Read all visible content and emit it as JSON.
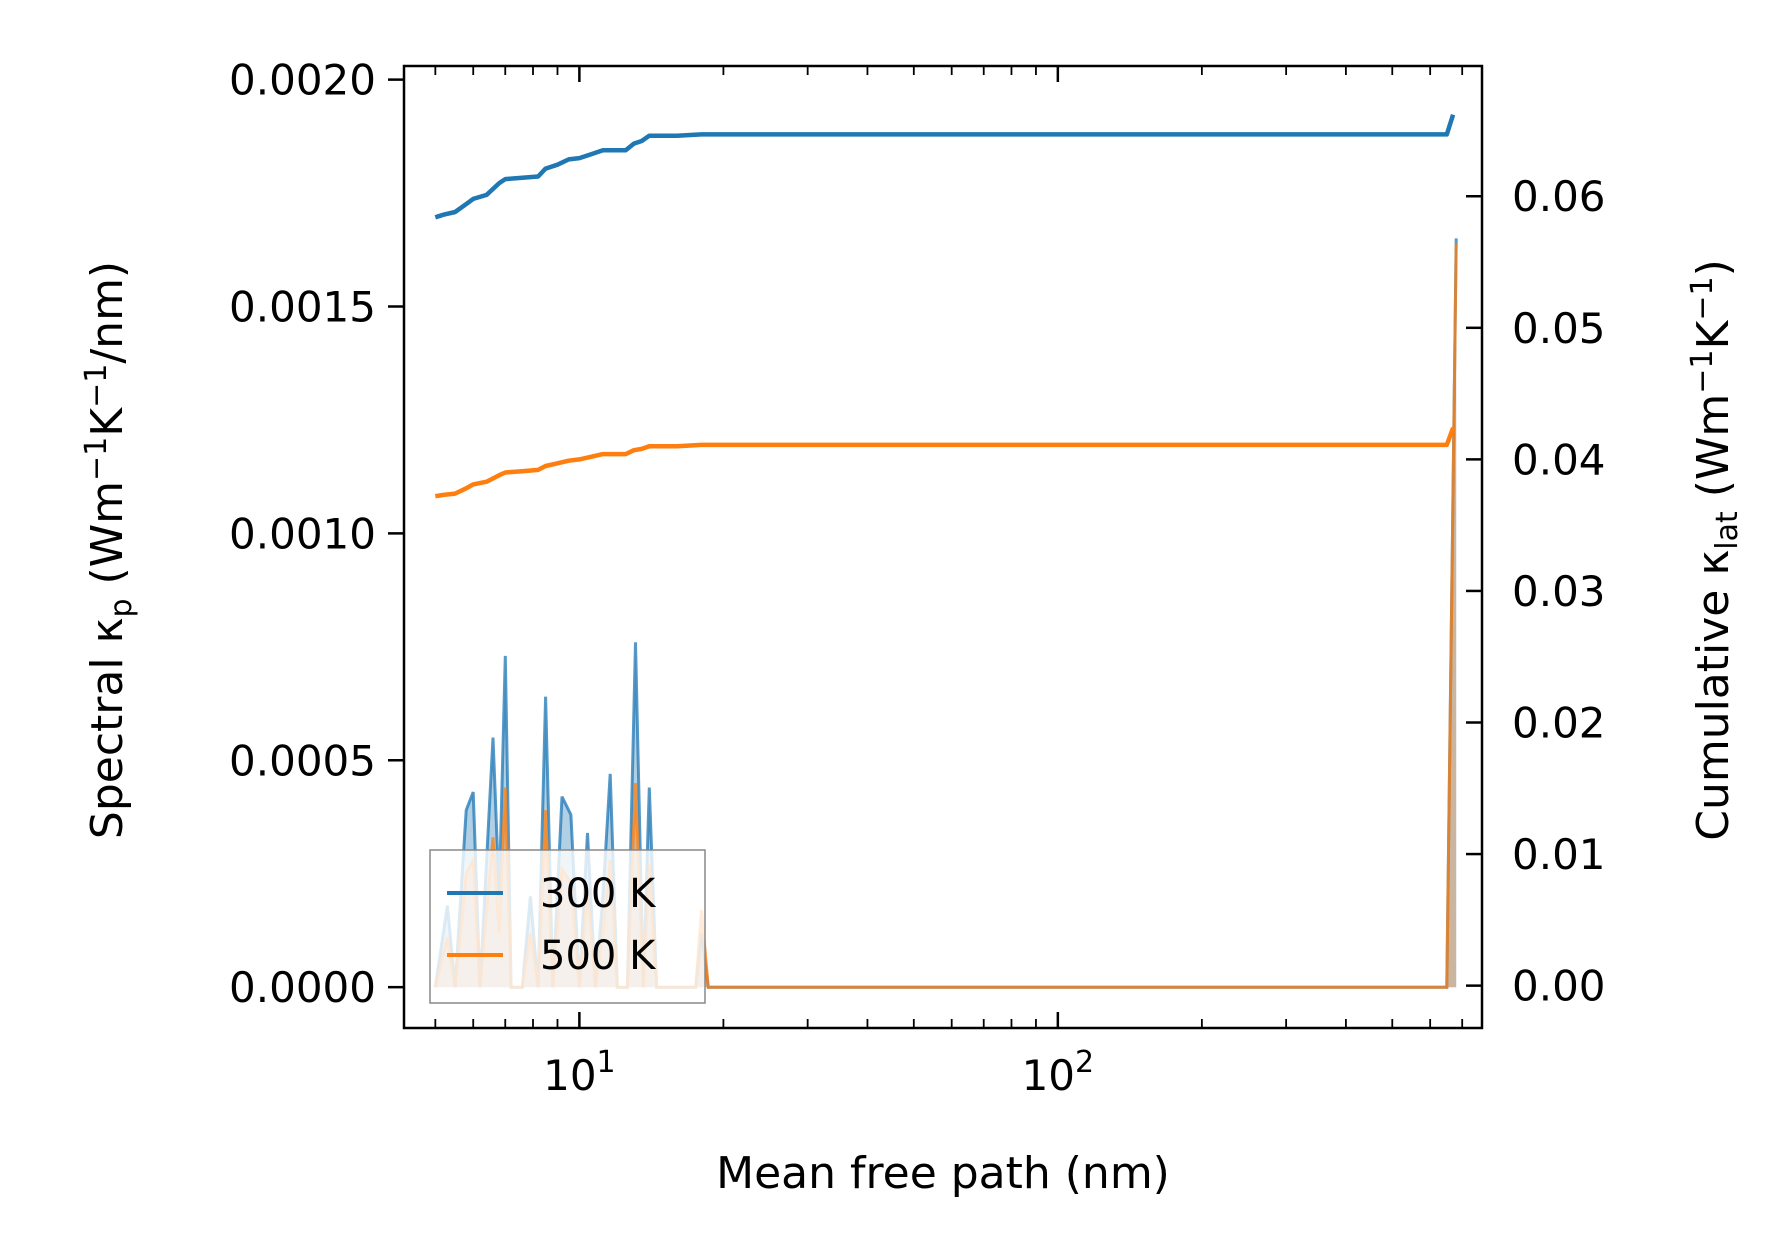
{
  "chart_data": {
    "type": "line",
    "xscale": "log",
    "xlabel": "Mean free path (nm)",
    "ylabel_left": {
      "prefix": "Spectral κ",
      "sub": "p",
      "unit_open": " (Wm",
      "sup1": "−1",
      "k": "K",
      "sup2": "−1",
      "unit_close": "/nm)"
    },
    "ylabel_right": {
      "prefix": "Cumulative κ",
      "sub": "lat",
      "unit_open": " (Wm",
      "sup1": "−1",
      "k": "K",
      "sup2": "−1",
      "unit_close": ")"
    },
    "xlim": [
      4.3,
      770
    ],
    "ylim_left": [
      -9e-05,
      0.00203
    ],
    "ylim_right": [
      -0.00322,
      0.0699
    ],
    "x_ticks": [
      {
        "value": 10,
        "base": "10",
        "exp": "1"
      },
      {
        "value": 100,
        "base": "10",
        "exp": "2"
      }
    ],
    "y_left_ticks": [
      {
        "value": 0.0,
        "label": "0.0000"
      },
      {
        "value": 0.0005,
        "label": "0.0005"
      },
      {
        "value": 0.001,
        "label": "0.0010"
      },
      {
        "value": 0.0015,
        "label": "0.0015"
      },
      {
        "value": 0.002,
        "label": "0.0020"
      }
    ],
    "y_right_ticks": [
      {
        "value": 0.0,
        "label": "0.00"
      },
      {
        "value": 0.01,
        "label": "0.01"
      },
      {
        "value": 0.02,
        "label": "0.02"
      },
      {
        "value": 0.03,
        "label": "0.03"
      },
      {
        "value": 0.04,
        "label": "0.04"
      },
      {
        "value": 0.05,
        "label": "0.05"
      },
      {
        "value": 0.06,
        "label": "0.06"
      }
    ],
    "legend": {
      "location": "lower-left"
    },
    "series": [
      {
        "name": "300 K",
        "color": "#1f77b4",
        "spectral": [
          [
            5.0,
            0.0
          ],
          [
            5.3,
            0.00018
          ],
          [
            5.5,
            0.0
          ],
          [
            5.8,
            0.00039
          ],
          [
            6.0,
            0.00043
          ],
          [
            6.2,
            0.0
          ],
          [
            6.6,
            0.00055
          ],
          [
            6.8,
            0.0002
          ],
          [
            7.0,
            0.00073
          ],
          [
            7.2,
            0.0
          ],
          [
            7.6,
            0.0
          ],
          [
            7.9,
            0.0002
          ],
          [
            8.2,
            0.0
          ],
          [
            8.5,
            0.00064
          ],
          [
            8.8,
            0.0
          ],
          [
            9.2,
            0.00042
          ],
          [
            9.6,
            0.00038
          ],
          [
            10.0,
            0.0
          ],
          [
            10.4,
            0.00034
          ],
          [
            10.8,
            0.0
          ],
          [
            11.2,
            0.0002
          ],
          [
            11.6,
            0.00047
          ],
          [
            12.0,
            0.0
          ],
          [
            12.6,
            0.0
          ],
          [
            13.1,
            0.00076
          ],
          [
            13.6,
            0.0
          ],
          [
            14.0,
            0.00044
          ],
          [
            14.5,
            0.0
          ],
          [
            17.5,
            0.0
          ],
          [
            18.0,
            0.00012
          ],
          [
            18.6,
            0.0
          ],
          [
            650.0,
            0.0
          ],
          [
            680.0,
            0.00165
          ]
        ],
        "cumulative": [
          [
            5.0,
            0.0584
          ],
          [
            5.2,
            0.0586
          ],
          [
            5.5,
            0.0588
          ],
          [
            5.8,
            0.0594
          ],
          [
            6.0,
            0.0598
          ],
          [
            6.4,
            0.0601
          ],
          [
            6.8,
            0.061
          ],
          [
            7.0,
            0.0613
          ],
          [
            7.6,
            0.0614
          ],
          [
            8.2,
            0.0615
          ],
          [
            8.5,
            0.0621
          ],
          [
            9.0,
            0.0624
          ],
          [
            9.5,
            0.0628
          ],
          [
            10.0,
            0.0629
          ],
          [
            10.6,
            0.0632
          ],
          [
            11.2,
            0.0635
          ],
          [
            11.8,
            0.0635
          ],
          [
            12.5,
            0.0635
          ],
          [
            13.0,
            0.064
          ],
          [
            13.5,
            0.0642
          ],
          [
            14.0,
            0.0646
          ],
          [
            16.0,
            0.0646
          ],
          [
            18.0,
            0.0647
          ],
          [
            100.0,
            0.0647
          ],
          [
            650.0,
            0.0647
          ],
          [
            670.0,
            0.0662
          ]
        ]
      },
      {
        "name": "500 K",
        "color": "#ff7f0e",
        "spectral": [
          [
            5.0,
            0.0
          ],
          [
            5.3,
            0.00011
          ],
          [
            5.5,
            0.0
          ],
          [
            5.8,
            0.00025
          ],
          [
            6.0,
            0.00028
          ],
          [
            6.2,
            0.0
          ],
          [
            6.6,
            0.00033
          ],
          [
            6.8,
            0.00012
          ],
          [
            7.0,
            0.00044
          ],
          [
            7.2,
            0.0
          ],
          [
            7.6,
            0.0
          ],
          [
            7.9,
            0.00012
          ],
          [
            8.2,
            0.0
          ],
          [
            8.5,
            0.00039
          ],
          [
            8.8,
            0.0
          ],
          [
            9.2,
            0.00026
          ],
          [
            9.6,
            0.00023
          ],
          [
            10.0,
            0.0
          ],
          [
            10.4,
            0.00021
          ],
          [
            10.8,
            0.0
          ],
          [
            11.2,
            0.00012
          ],
          [
            11.6,
            0.00028
          ],
          [
            12.0,
            0.0
          ],
          [
            12.6,
            0.0
          ],
          [
            13.1,
            0.00045
          ],
          [
            13.6,
            0.0
          ],
          [
            14.0,
            0.00027
          ],
          [
            14.5,
            0.0
          ],
          [
            17.5,
            0.0
          ],
          [
            18.0,
            0.00017
          ],
          [
            18.6,
            0.0
          ],
          [
            650.0,
            0.0
          ],
          [
            680.0,
            0.00164
          ]
        ],
        "cumulative": [
          [
            5.0,
            0.0372
          ],
          [
            5.2,
            0.0373
          ],
          [
            5.5,
            0.0374
          ],
          [
            5.8,
            0.0378
          ],
          [
            6.0,
            0.0381
          ],
          [
            6.4,
            0.0383
          ],
          [
            6.8,
            0.0388
          ],
          [
            7.0,
            0.039
          ],
          [
            7.6,
            0.0391
          ],
          [
            8.2,
            0.0392
          ],
          [
            8.5,
            0.0395
          ],
          [
            9.0,
            0.0397
          ],
          [
            9.5,
            0.0399
          ],
          [
            10.0,
            0.04
          ],
          [
            10.6,
            0.0402
          ],
          [
            11.2,
            0.0404
          ],
          [
            11.8,
            0.0404
          ],
          [
            12.5,
            0.0404
          ],
          [
            13.0,
            0.0407
          ],
          [
            13.5,
            0.0408
          ],
          [
            14.0,
            0.041
          ],
          [
            16.0,
            0.041
          ],
          [
            18.0,
            0.0411
          ],
          [
            100.0,
            0.0411
          ],
          [
            650.0,
            0.0411
          ],
          [
            670.0,
            0.0424
          ]
        ]
      }
    ]
  }
}
